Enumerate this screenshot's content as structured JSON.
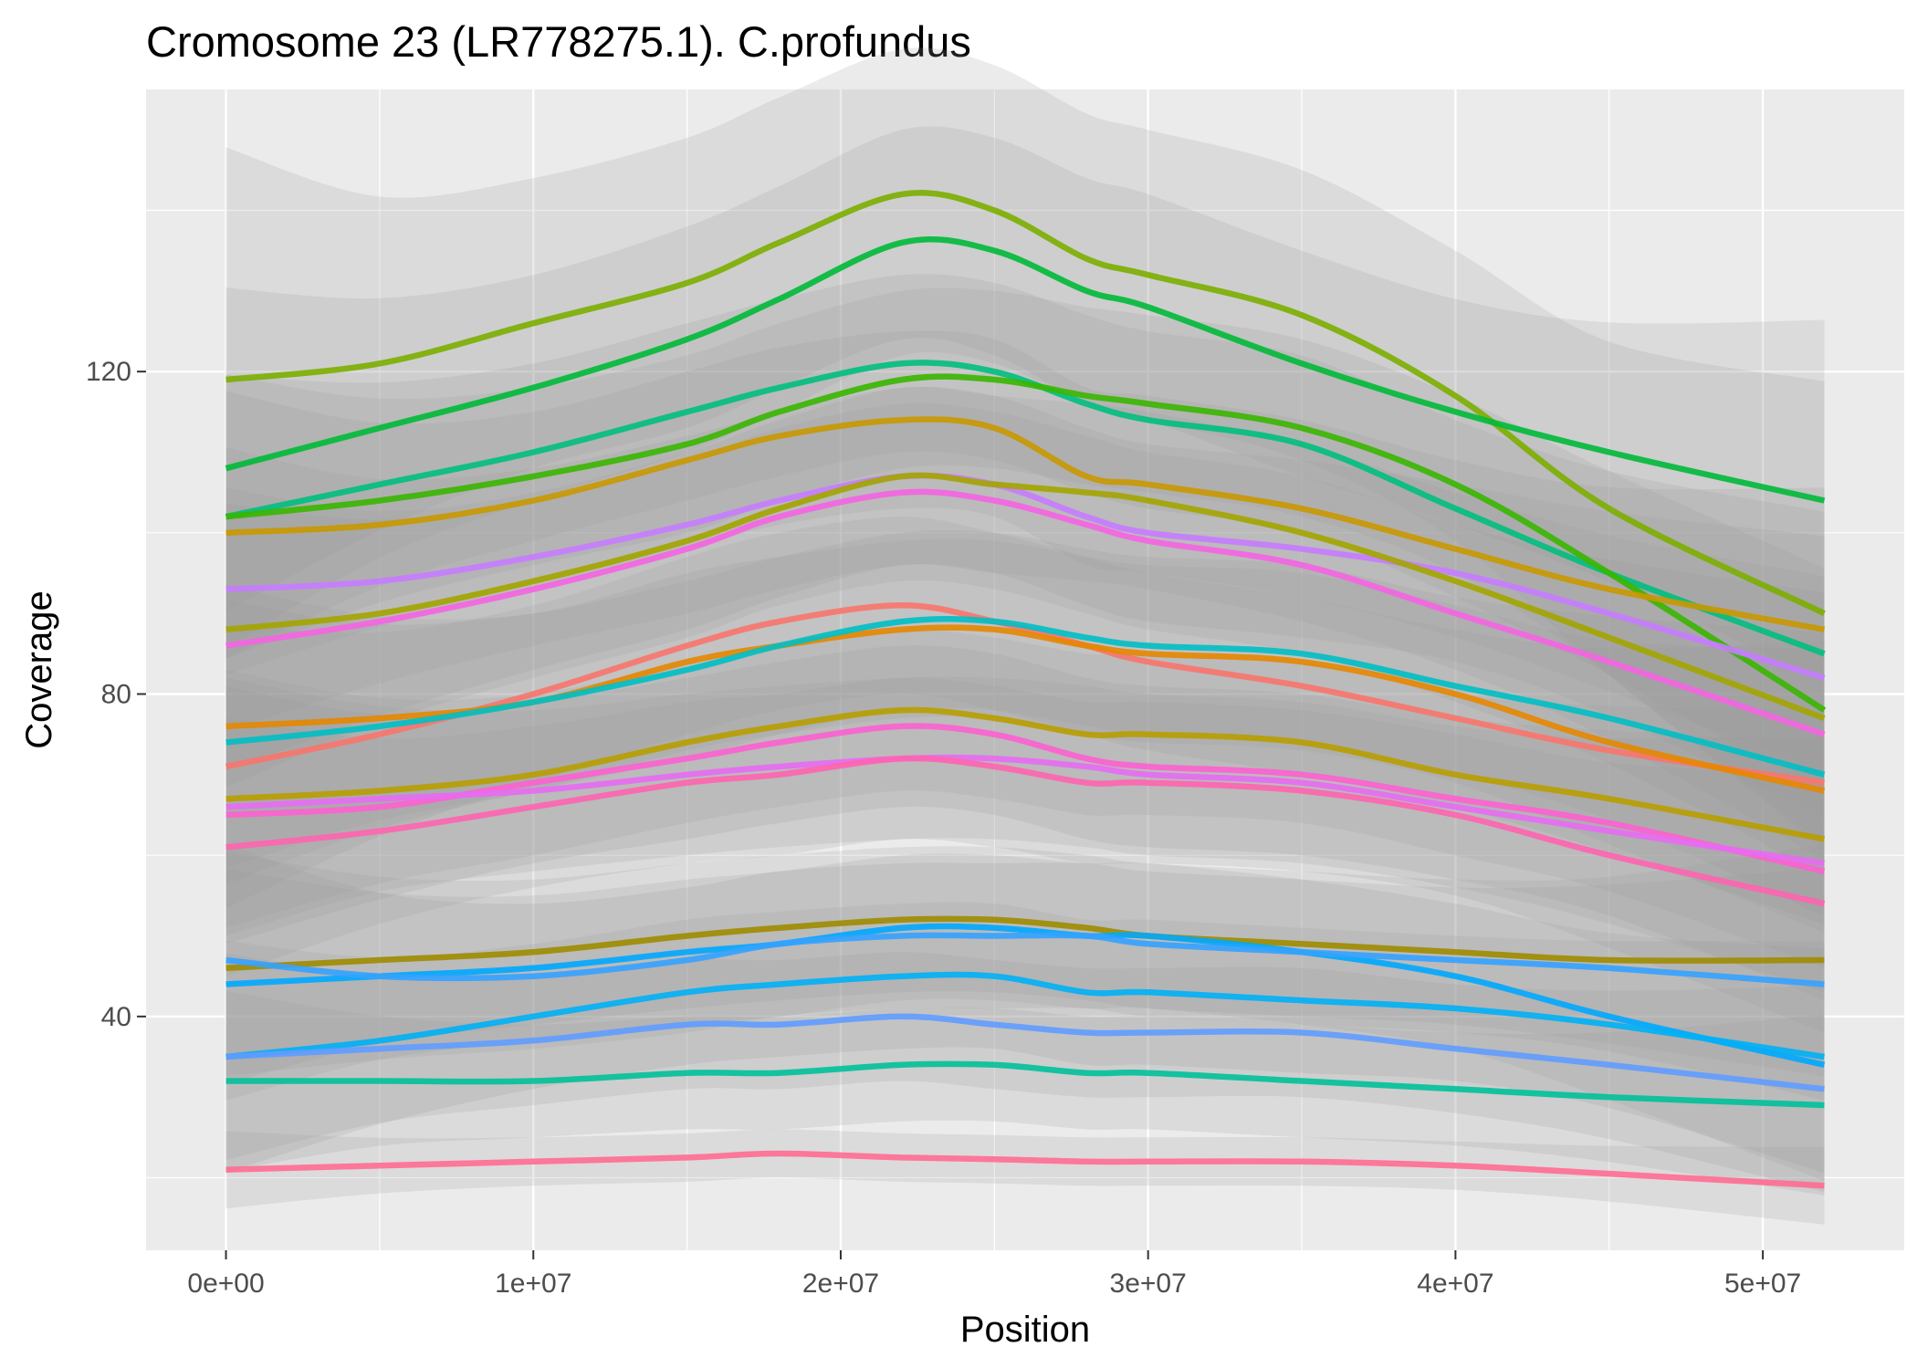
{
  "chart_data": {
    "type": "line",
    "title": "Cromosome 23 (LR778275.1). C.profundus",
    "xlabel": "Position",
    "ylabel": "Coverage",
    "x_ticks": [
      0,
      10000000,
      20000000,
      30000000,
      40000000,
      50000000
    ],
    "x_tick_labels": [
      "0e+00",
      "1e+07",
      "2e+07",
      "3e+07",
      "4e+07",
      "5e+07"
    ],
    "y_ticks": [
      40,
      80,
      120
    ],
    "y_tick_labels": [
      "40",
      "80",
      "120"
    ],
    "xlim": [
      -2600000,
      54600000
    ],
    "ylim": [
      11,
      155
    ],
    "grid": true,
    "confidence_band": true,
    "band_color": "#999999",
    "panel_background": "#ebebeb",
    "x": [
      0,
      5000000,
      10000000,
      15000000,
      18000000,
      22000000,
      25000000,
      28000000,
      30000000,
      35000000,
      40000000,
      45000000,
      52000000
    ],
    "series": [
      {
        "color": "#7cae00",
        "values": [
          119,
          121,
          126,
          131,
          136,
          142,
          140,
          134,
          132,
          127,
          117,
          103,
          90
        ],
        "halfwidth": 18
      },
      {
        "color": "#00ba38",
        "values": [
          108,
          113,
          118,
          124,
          129,
          136,
          135,
          130,
          128,
          121,
          115,
          110,
          104
        ],
        "halfwidth": 14
      },
      {
        "color": "#00bf7d",
        "values": [
          102,
          106,
          110,
          115,
          118,
          121,
          120,
          116,
          114,
          111,
          103,
          95,
          85
        ],
        "halfwidth": 11
      },
      {
        "color": "#39b600",
        "values": [
          102,
          104,
          107,
          111,
          115,
          119,
          119,
          117,
          116,
          113,
          106,
          95,
          78
        ],
        "halfwidth": 11
      },
      {
        "color": "#c99800",
        "values": [
          100,
          101,
          104,
          109,
          112,
          114,
          113,
          107,
          106,
          103,
          98,
          93,
          88
        ],
        "halfwidth": 11
      },
      {
        "color": "#c77cff",
        "values": [
          93,
          94,
          97,
          101,
          104,
          107,
          106,
          102,
          100,
          98,
          95,
          90,
          82
        ],
        "halfwidth": 11
      },
      {
        "color": "#a3a500",
        "values": [
          88,
          90,
          94,
          99,
          103,
          107,
          106,
          105,
          104,
          100,
          94,
          87,
          77
        ],
        "halfwidth": 11
      },
      {
        "color": "#f564e3",
        "values": [
          86,
          89,
          93,
          98,
          102,
          105,
          104,
          101,
          99,
          96,
          90,
          84,
          75
        ],
        "halfwidth": 11
      },
      {
        "color": "#f8766d",
        "values": [
          71,
          75,
          80,
          86,
          89,
          91,
          89,
          86,
          84,
          81,
          77,
          73,
          69
        ],
        "halfwidth": 11
      },
      {
        "color": "#e58700",
        "values": [
          76,
          77,
          79,
          84,
          86,
          88,
          88,
          86,
          85,
          84,
          80,
          74,
          68
        ],
        "halfwidth": 11
      },
      {
        "color": "#00bfc4",
        "values": [
          74,
          76,
          79,
          83,
          86,
          89,
          89,
          87,
          86,
          85,
          81,
          77,
          70
        ],
        "halfwidth": 11
      },
      {
        "color": "#b79f00",
        "values": [
          67,
          68,
          70,
          74,
          76,
          78,
          77,
          75,
          75,
          74,
          70,
          67,
          62
        ],
        "halfwidth": 10
      },
      {
        "color": "#fd61d1",
        "values": [
          65,
          66,
          69,
          72,
          74,
          76,
          75,
          72,
          71,
          70,
          67,
          64,
          58
        ],
        "halfwidth": 10
      },
      {
        "color": "#e76bf3",
        "values": [
          66,
          67,
          68,
          70,
          71,
          72,
          72,
          71,
          70,
          69,
          66,
          63,
          59
        ],
        "halfwidth": 10
      },
      {
        "color": "#ff64b0",
        "values": [
          61,
          63,
          66,
          69,
          70,
          72,
          71,
          69,
          69,
          68,
          65,
          60,
          54
        ],
        "halfwidth": 10
      },
      {
        "color": "#9e8c00",
        "values": [
          46,
          47,
          48,
          50,
          51,
          52,
          52,
          51,
          50,
          49,
          48,
          47,
          47
        ],
        "halfwidth": 9
      },
      {
        "color": "#00a9ff",
        "values": [
          44,
          45,
          46,
          48,
          49,
          51,
          51,
          50,
          50,
          48,
          45,
          40,
          34
        ],
        "halfwidth": 9
      },
      {
        "color": "#35a2ff",
        "values": [
          47,
          45,
          45,
          47,
          49,
          50,
          50,
          50,
          49,
          48,
          47,
          46,
          44
        ],
        "halfwidth": 9
      },
      {
        "color": "#00b0f6",
        "values": [
          35,
          37,
          40,
          43,
          44,
          45,
          45,
          43,
          43,
          42,
          41,
          39,
          35
        ],
        "halfwidth": 9
      },
      {
        "color": "#619cff",
        "values": [
          35,
          36,
          37,
          39,
          39,
          40,
          39,
          38,
          38,
          38,
          36,
          34,
          31
        ],
        "halfwidth": 8
      },
      {
        "color": "#00c19a",
        "values": [
          32,
          32,
          32,
          33,
          33,
          34,
          34,
          33,
          33,
          32,
          31,
          30,
          29
        ],
        "halfwidth": 7
      },
      {
        "color": "#ff6c91",
        "values": [
          21,
          21.5,
          22,
          22.5,
          23,
          22.5,
          22.3,
          22,
          22,
          22,
          21.5,
          20.5,
          19
        ],
        "halfwidth": 3
      }
    ]
  }
}
